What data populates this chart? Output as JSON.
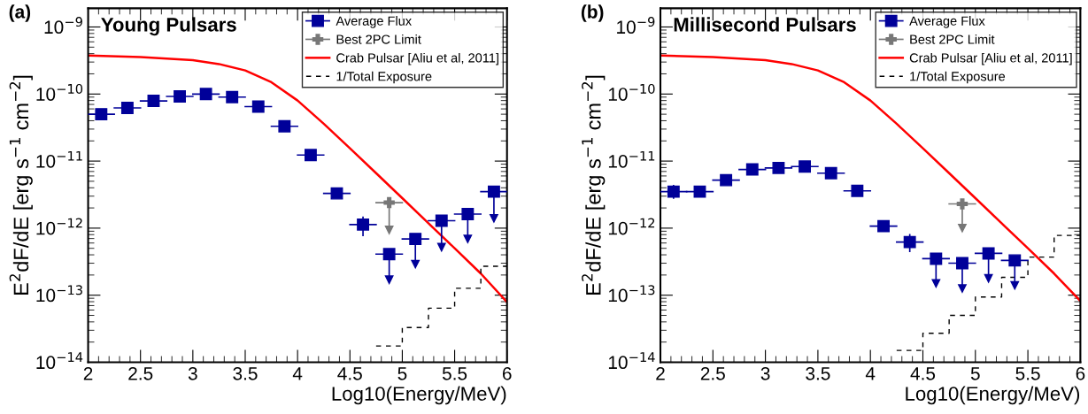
{
  "chart_data": [
    {
      "type": "scatter",
      "title": "Young Pulsars",
      "annotations": [
        "(a)"
      ],
      "xlabel": "Log10(Energy/MeV)",
      "ylabel": "E$^{2}$dF/dE [erg s$^{−1}$ cm$^{−2}$]",
      "log": "y",
      "grid": false,
      "legend": "top right",
      "xlim": [
        2,
        6
      ],
      "xticks": [
        2,
        2.5,
        3,
        3.5,
        4,
        4.5,
        5,
        5.5,
        6
      ],
      "ylim": [
        1e-14,
        1.9e-09
      ],
      "yticks": [
        {
          "value": 1e-14,
          "label": "10$^{−14}$"
        },
        {
          "value": 1e-13,
          "label": "10$^{−13}$"
        },
        {
          "value": 1e-12,
          "label": "10$^{−12}$"
        },
        {
          "value": 1e-11,
          "label": "10$^{−11}$"
        },
        {
          "value": 1e-10,
          "label": "10$^{−10}$"
        },
        {
          "value": 1e-09,
          "label": "10$^{−9}$"
        }
      ],
      "series": [
        {
          "name": "Average Flux",
          "marker": "square",
          "color": "#000099",
          "x": [
            2.125,
            2.375,
            2.625,
            2.875,
            3.125,
            3.375,
            3.625,
            3.875,
            4.125,
            4.375,
            4.625,
            4.875,
            5.125,
            5.375,
            5.625,
            5.875
          ],
          "values": [
            5e-11,
            6.2e-11,
            7.9e-11,
            9.2e-11,
            1e-10,
            9e-11,
            6.5e-11,
            3.3e-11,
            1.23e-11,
            3.3e-12,
            1.13e-12,
            4.1e-13,
            6.9e-13,
            1.29e-12,
            1.62e-12,
            3.5e-12
          ],
          "xerrors": [
            0.125,
            0.125,
            0.125,
            0.125,
            0.125,
            0.125,
            0.125,
            0.125,
            0.125,
            0.125,
            0.125,
            0.125,
            0.125,
            0.125,
            0.125,
            0.125
          ],
          "errors": [
            null,
            null,
            null,
            null,
            null,
            null,
            null,
            null,
            null,
            null,
            [
              7.8e-13,
              1.45e-12
            ],
            [
              1.7e-13,
              4.1e-13
            ],
            [
              2.9e-13,
              6.9e-13
            ],
            [
              5.2e-13,
              1.29e-12
            ],
            [
              6.9e-13,
              1.62e-12
            ],
            [
              1.4e-12,
              3.5e-12
            ]
          ]
        },
        {
          "name": "Best 2PC Limit",
          "marker": "cross",
          "color": "#777777",
          "x": [
            4.875
          ],
          "values": [
            2.4e-12
          ],
          "xerrors": [
            0.125
          ],
          "errors": [
            [
              9.4e-13,
              2.4e-12
            ]
          ]
        },
        {
          "name": "Crab Pulsar [Aliu et al, 2011]",
          "type": "line",
          "marker": "none",
          "line_style": "solid",
          "color": "#ff0000",
          "x": [
            2,
            2.5,
            3,
            3.25,
            3.5,
            3.75,
            4,
            4.25,
            4.5,
            4.75,
            5,
            5.25,
            5.5,
            5.75,
            6
          ],
          "values": [
            3.75e-10,
            3.55e-10,
            3.2e-10,
            2.8e-10,
            2.25e-10,
            1.5e-10,
            8e-11,
            3.6e-11,
            1.55e-11,
            6.6e-12,
            2.8e-12,
            1.18e-12,
            5e-13,
            2.1e-13,
            7.9e-14
          ]
        },
        {
          "name": "1/Total Exposure",
          "type": "step",
          "marker": "none",
          "line_style": "dashed",
          "color": "#000000",
          "x": [
            4.75,
            5,
            5.25,
            5.5,
            5.75,
            6
          ],
          "values": [
            1.75e-14,
            3.3e-14,
            6.4e-14,
            1.27e-13,
            2.7e-13,
            2.7e-13
          ]
        }
      ]
    },
    {
      "type": "scatter",
      "title": "Millisecond Pulsars",
      "annotations": [
        "(b)"
      ],
      "xlabel": "Log10(Energy/MeV)",
      "ylabel": "E$^{2}$dF/dE [erg s$^{−1}$ cm$^{−2}$]",
      "log": "y",
      "grid": false,
      "legend": "top right",
      "xlim": [
        2,
        6
      ],
      "xticks": [
        2,
        2.5,
        3,
        3.5,
        4,
        4.5,
        5,
        5.5,
        6
      ],
      "ylim": [
        1e-14,
        1.9e-09
      ],
      "yticks": [
        {
          "value": 1e-14,
          "label": "10$^{−14}$"
        },
        {
          "value": 1e-13,
          "label": "10$^{−13}$"
        },
        {
          "value": 1e-12,
          "label": "10$^{−12}$"
        },
        {
          "value": 1e-11,
          "label": "10$^{−11}$"
        },
        {
          "value": 1e-10,
          "label": "10$^{−10}$"
        },
        {
          "value": 1e-09,
          "label": "10$^{−9}$"
        }
      ],
      "series": [
        {
          "name": "Average Flux",
          "marker": "square",
          "color": "#000099",
          "x": [
            2.125,
            2.375,
            2.625,
            2.875,
            3.125,
            3.375,
            3.625,
            3.875,
            4.125,
            4.375,
            4.625,
            4.875,
            5.125,
            5.375
          ],
          "values": [
            3.5e-12,
            3.5e-12,
            5.2e-12,
            7.5e-12,
            7.9e-12,
            8.3e-12,
            6.6e-12,
            3.6e-12,
            1.07e-12,
            6.2e-13,
            3.5e-13,
            3e-13,
            4.2e-13,
            3.3e-13
          ],
          "xerrors": [
            0.125,
            0.125,
            0.125,
            0.125,
            0.125,
            0.125,
            0.125,
            0.125,
            0.125,
            0.125,
            0.125,
            0.125,
            0.125,
            0.125
          ],
          "errors": [
            [
              2.8e-12,
              4.3e-12
            ],
            null,
            null,
            null,
            null,
            null,
            null,
            null,
            null,
            [
              4.5e-13,
              8e-13
            ],
            [
              1.5e-13,
              3.5e-13
            ],
            [
              1.26e-13,
              3e-13
            ],
            [
              1.78e-13,
              4.2e-13
            ],
            [
              1.4e-13,
              3.3e-13
            ]
          ]
        },
        {
          "name": "Best 2PC Limit",
          "marker": "cross",
          "color": "#777777",
          "x": [
            4.875
          ],
          "values": [
            2.3e-12
          ],
          "xerrors": [
            0.125
          ],
          "errors": [
            [
              1e-12,
              2.3e-12
            ]
          ]
        },
        {
          "name": "Crab Pulsar [Aliu et al, 2011]",
          "type": "line",
          "marker": "none",
          "line_style": "solid",
          "color": "#ff0000",
          "x": [
            2,
            2.5,
            3,
            3.25,
            3.5,
            3.75,
            4,
            4.25,
            4.5,
            4.75,
            5,
            5.25,
            5.5,
            5.75,
            6
          ],
          "values": [
            3.75e-10,
            3.55e-10,
            3.2e-10,
            2.8e-10,
            2.25e-10,
            1.5e-10,
            8e-11,
            3.6e-11,
            1.55e-11,
            6.6e-12,
            2.8e-12,
            1.18e-12,
            5e-13,
            2.1e-13,
            8.2e-14
          ]
        },
        {
          "name": "1/Total Exposure",
          "type": "step",
          "marker": "none",
          "line_style": "dashed",
          "color": "#000000",
          "x": [
            4.25,
            4.5,
            4.75,
            5,
            5.25,
            5.5,
            5.75,
            6
          ],
          "values": [
            1.5e-14,
            2.7e-14,
            5e-14,
            9.4e-14,
            1.85e-13,
            3.7e-13,
            7.8e-13,
            7.8e-13
          ]
        }
      ]
    }
  ]
}
